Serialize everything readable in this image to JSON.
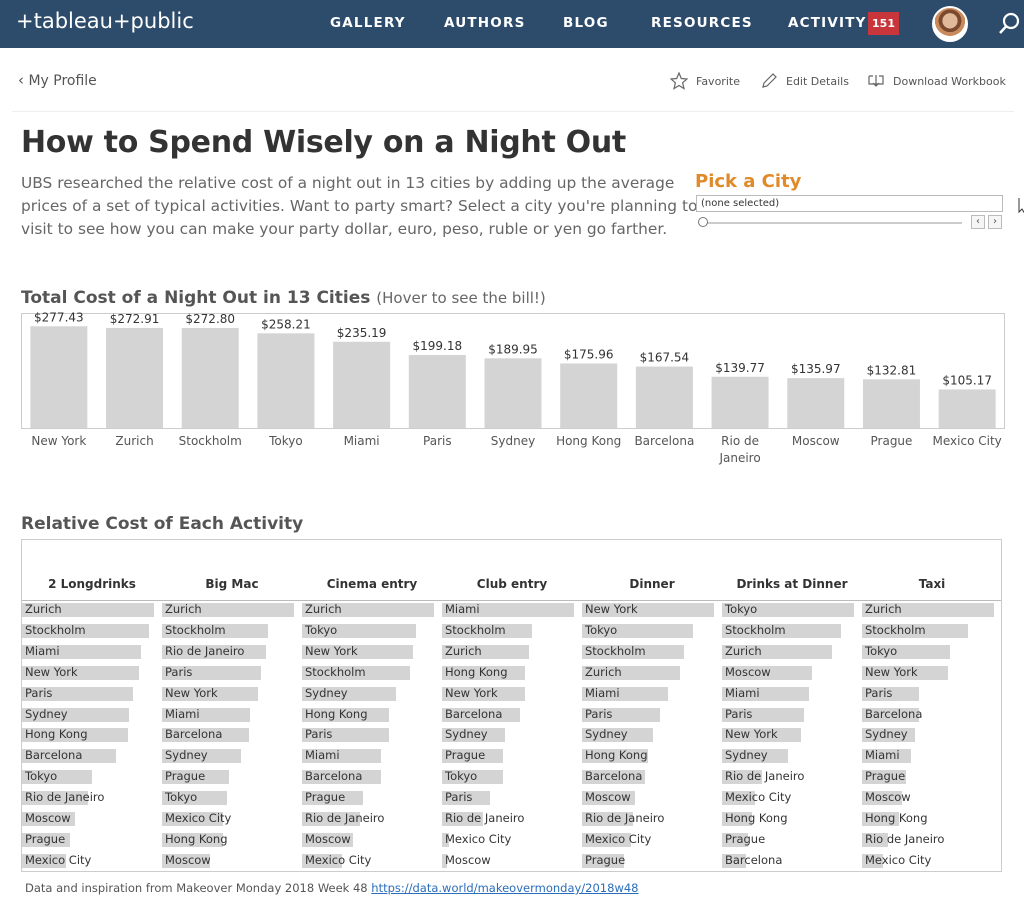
{
  "nav": {
    "logo": "+tableau+public",
    "items": [
      "GALLERY",
      "AUTHORS",
      "BLOG",
      "RESOURCES",
      "ACTIVITY"
    ],
    "badge": "151"
  },
  "subheader": {
    "back_label": "My Profile",
    "favorite": "Favorite",
    "edit": "Edit Details",
    "download": "Download Workbook"
  },
  "viz": {
    "title": "How to Spend Wisely on a Night Out",
    "description": "UBS researched the relative cost of a night out in 13 cities by adding up the average prices of a set of typical activities. Want to party smart? Select a city you're planning to visit to see how you can make your party dollar, euro, peso, ruble or yen go farther.",
    "filter_title": "Pick a City",
    "filter_value": "(none selected)",
    "chart_title": "Total Cost of a Night Out in 13 Cities",
    "chart_subtitle": "(Hover to see the bill!)",
    "table_title": "Relative Cost of Each Activity",
    "footer_text": "Data and inspiration from Makeover Monday 2018 Week 48",
    "footer_link": "https://data.world/makeovermonday/2018w48"
  },
  "chart_data": [
    {
      "type": "bar",
      "title": "Total Cost of a Night Out in 13 Cities",
      "categories": [
        "New York",
        "Zurich",
        "Stockholm",
        "Tokyo",
        "Miami",
        "Paris",
        "Sydney",
        "Hong Kong",
        "Barcelona",
        "Rio de Janeiro",
        "Moscow",
        "Prague",
        "Mexico City"
      ],
      "values": [
        277.43,
        272.91,
        272.8,
        258.21,
        235.19,
        199.18,
        189.95,
        175.96,
        167.54,
        139.77,
        135.97,
        132.81,
        105.17
      ],
      "data_labels": [
        "$277.43",
        "$272.91",
        "$272.80",
        "$258.21",
        "$235.19",
        "$199.18",
        "$189.95",
        "$175.96",
        "$167.54",
        "$139.77",
        "$135.97",
        "$132.81",
        "$105.17"
      ],
      "ylim": [
        0,
        300
      ],
      "color": "#d4d4d4"
    },
    {
      "type": "table",
      "title": "Relative Cost of Each Activity",
      "columns": [
        {
          "name": "2 Longdrinks",
          "rows": [
            "Zurich",
            "Stockholm",
            "Miami",
            "New York",
            "Paris",
            "Sydney",
            "Hong Kong",
            "Barcelona",
            "Tokyo",
            "Rio de Janeiro",
            "Moscow",
            "Prague",
            "Mexico City"
          ],
          "values": [
            1.0,
            0.96,
            0.9,
            0.89,
            0.84,
            0.81,
            0.8,
            0.71,
            0.53,
            0.5,
            0.4,
            0.36,
            0.33
          ]
        },
        {
          "name": "Big Mac",
          "rows": [
            "Zurich",
            "Stockholm",
            "Rio de Janeiro",
            "Paris",
            "New York",
            "Miami",
            "Barcelona",
            "Sydney",
            "Prague",
            "Tokyo",
            "Mexico City",
            "Hong Kong",
            "Moscow"
          ],
          "values": [
            1.0,
            0.8,
            0.79,
            0.75,
            0.73,
            0.67,
            0.66,
            0.6,
            0.51,
            0.49,
            0.46,
            0.46,
            0.36
          ]
        },
        {
          "name": "Cinema entry",
          "rows": [
            "Zurich",
            "Tokyo",
            "New York",
            "Stockholm",
            "Sydney",
            "Hong Kong",
            "Paris",
            "Miami",
            "Barcelona",
            "Prague",
            "Rio de Janeiro",
            "Moscow",
            "Mexico City"
          ],
          "values": [
            1.0,
            0.86,
            0.84,
            0.82,
            0.71,
            0.66,
            0.66,
            0.6,
            0.6,
            0.46,
            0.44,
            0.39,
            0.3
          ]
        },
        {
          "name": "Club entry",
          "rows": [
            "Miami",
            "Stockholm",
            "Zurich",
            "Hong Kong",
            "New York",
            "Barcelona",
            "Sydney",
            "Prague",
            "Tokyo",
            "Paris",
            "Rio de Janeiro",
            "Mexico City",
            "Moscow"
          ],
          "values": [
            1.0,
            0.68,
            0.66,
            0.63,
            0.63,
            0.59,
            0.48,
            0.46,
            0.46,
            0.36,
            0.31,
            0.05,
            0.04
          ]
        },
        {
          "name": "Dinner",
          "rows": [
            "New York",
            "Tokyo",
            "Stockholm",
            "Zurich",
            "Miami",
            "Paris",
            "Sydney",
            "Hong Kong",
            "Barcelona",
            "Moscow",
            "Rio de Janeiro",
            "Mexico City",
            "Prague"
          ],
          "values": [
            1.0,
            0.84,
            0.77,
            0.74,
            0.65,
            0.59,
            0.54,
            0.5,
            0.48,
            0.4,
            0.39,
            0.37,
            0.32
          ]
        },
        {
          "name": "Drinks at Dinner",
          "rows": [
            "Tokyo",
            "Stockholm",
            "Zurich",
            "Moscow",
            "Miami",
            "Paris",
            "New York",
            "Sydney",
            "Rio de Janeiro",
            "Mexico City",
            "Hong Kong",
            "Prague",
            "Barcelona"
          ],
          "values": [
            1.0,
            0.9,
            0.83,
            0.68,
            0.66,
            0.62,
            0.6,
            0.5,
            0.3,
            0.25,
            0.23,
            0.2,
            0.18
          ]
        },
        {
          "name": "Taxi",
          "rows": [
            "Zurich",
            "Stockholm",
            "Tokyo",
            "New York",
            "Paris",
            "Barcelona",
            "Sydney",
            "Miami",
            "Prague",
            "Moscow",
            "Hong Kong",
            "Rio de Janeiro",
            "Mexico City"
          ],
          "values": [
            1.0,
            0.8,
            0.67,
            0.65,
            0.43,
            0.43,
            0.4,
            0.37,
            0.33,
            0.3,
            0.28,
            0.2,
            0.16
          ]
        }
      ]
    }
  ]
}
